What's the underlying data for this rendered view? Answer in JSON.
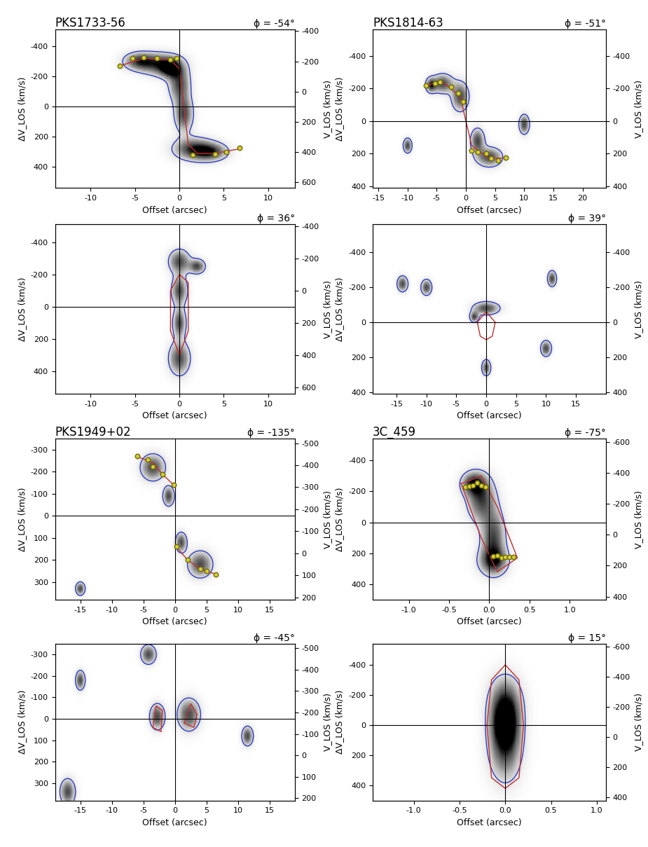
{
  "chart_data": [
    {
      "type": "position-velocity",
      "title": "PKS1733-56",
      "annotation": "ϕ = -54°",
      "x_label": "Offset (arcsec)",
      "y_label": "ΔV_LOS (km/s)",
      "y2_label": "V_LOS (km/s)",
      "xlim": [
        -14,
        13
      ],
      "xticks": [
        -10,
        -5,
        0,
        5,
        10
      ],
      "ylim": [
        540,
        -510
      ],
      "yticks": [
        -400,
        -200,
        0,
        200,
        400
      ],
      "y2lim": [
        640,
        -410
      ],
      "y2ticks": [
        -400,
        -200,
        0,
        200,
        400,
        600
      ],
      "emission": [
        [
          -2,
          -280,
          1.5,
          50
        ],
        [
          -4.5,
          -300,
          1.2,
          40
        ],
        [
          -1,
          -250,
          0.8,
          40
        ],
        [
          0,
          -150,
          0.8,
          80
        ],
        [
          0.5,
          50,
          0.7,
          80
        ],
        [
          1.5,
          280,
          1.5,
          50
        ],
        [
          3.5,
          300,
          1.3,
          40
        ]
      ],
      "model": [
        [
          [
            -6.7,
            -270
          ],
          [
            -4,
            -320
          ],
          [
            -1,
            -310
          ],
          [
            0,
            -250
          ],
          [
            0.5,
            0
          ],
          [
            1,
            250
          ],
          [
            2,
            310
          ],
          [
            4,
            310
          ],
          [
            6.8,
            280
          ]
        ]
      ],
      "points": [
        [
          -6.7,
          -270
        ],
        [
          -5.3,
          -320
        ],
        [
          -4,
          -325
        ],
        [
          -2.5,
          -320
        ],
        [
          -1,
          -310
        ],
        [
          -0.3,
          -320
        ],
        [
          1.5,
          320
        ],
        [
          4,
          315
        ],
        [
          5.3,
          300
        ],
        [
          6.8,
          275
        ]
      ]
    },
    {
      "type": "position-velocity",
      "annotation": "ϕ = 36°",
      "x_label": "Offset (arcsec)",
      "y_label": "ΔV_LOS (km/s)",
      "y2_label": "V_LOS (km/s)",
      "xlim": [
        -14,
        13
      ],
      "xticks": [
        -10,
        -5,
        0,
        5,
        10
      ],
      "ylim": [
        540,
        -510
      ],
      "yticks": [
        -400,
        -200,
        0,
        200,
        400
      ],
      "y2lim": [
        640,
        -410
      ],
      "y2ticks": [
        -400,
        -200,
        0,
        200,
        400,
        600
      ],
      "emission": [
        [
          0,
          -280,
          0.8,
          50
        ],
        [
          0,
          -100,
          0.6,
          60
        ],
        [
          0,
          100,
          0.5,
          60
        ],
        [
          0,
          320,
          0.8,
          70
        ],
        [
          2,
          -250,
          0.6,
          30
        ]
      ],
      "model": [
        [
          [
            -1,
            150
          ],
          [
            -1,
            -100
          ],
          [
            0,
            -200
          ],
          [
            1,
            -150
          ],
          [
            1,
            150
          ],
          [
            0,
            300
          ],
          [
            -1,
            150
          ]
        ]
      ],
      "points": []
    },
    {
      "type": "position-velocity",
      "title": "PKS1814-63",
      "annotation": "ϕ = -51°",
      "x_label": "Offset (arcsec)",
      "y_label": "ΔV_LOS (km/s)",
      "y2_label": "V_LOS (km/s)",
      "xlim": [
        -16,
        24
      ],
      "xticks": [
        -15,
        -10,
        -5,
        0,
        5,
        10,
        15,
        20
      ],
      "ylim": [
        410,
        -560
      ],
      "yticks": [
        -400,
        -200,
        0,
        200,
        400
      ],
      "y2lim": [
        410,
        -560
      ],
      "y2ticks": [
        -400,
        -200,
        0,
        200,
        400
      ],
      "emission": [
        [
          -4,
          -230,
          1.2,
          40
        ],
        [
          -1,
          -150,
          1,
          60
        ],
        [
          2,
          120,
          0.8,
          50
        ],
        [
          4,
          220,
          1.5,
          40
        ],
        [
          -6,
          -220,
          0.6,
          30
        ],
        [
          10,
          20,
          0.6,
          40
        ],
        [
          -10,
          150,
          0.5,
          30
        ]
      ],
      "model": [
        [
          [
            -6.8,
            -220
          ],
          [
            -4,
            -240
          ],
          [
            -1,
            -150
          ],
          [
            0,
            0
          ],
          [
            1,
            150
          ],
          [
            4,
            230
          ],
          [
            6.8,
            225
          ]
        ]
      ],
      "points": [
        [
          -6.8,
          -220
        ],
        [
          -5.3,
          -230
        ],
        [
          -4.5,
          -240
        ],
        [
          -2.5,
          -210
        ],
        [
          -1.3,
          -170
        ],
        [
          -0.5,
          -120
        ],
        [
          1,
          180
        ],
        [
          2,
          190
        ],
        [
          3.5,
          200
        ],
        [
          4.3,
          230
        ],
        [
          5.5,
          240
        ],
        [
          6.8,
          225
        ]
      ]
    },
    {
      "type": "position-velocity",
      "annotation": "ϕ = 39°",
      "x_label": "Offset (arcsec)",
      "y_label": "ΔV_LOS (km/s)",
      "y2_label": "V_LOS (km/s)",
      "xlim": [
        -19,
        20
      ],
      "xticks": [
        -15,
        -10,
        -5,
        0,
        5,
        10,
        15
      ],
      "ylim": [
        410,
        -560
      ],
      "yticks": [
        -400,
        -200,
        0,
        200,
        400
      ],
      "y2lim": [
        410,
        -560
      ],
      "y2ticks": [
        -400,
        -200,
        0,
        200,
        400
      ],
      "emission": [
        [
          0,
          -80,
          1.5,
          25
        ],
        [
          -2,
          -30,
          0.5,
          20
        ],
        [
          -10,
          -200,
          0.6,
          30
        ],
        [
          -14,
          -220,
          0.6,
          30
        ],
        [
          10,
          150,
          0.6,
          30
        ],
        [
          11,
          -250,
          0.5,
          30
        ],
        [
          0,
          260,
          0.5,
          30
        ]
      ],
      "model": [
        [
          [
            -1.5,
            0
          ],
          [
            0,
            -60
          ],
          [
            1.5,
            0
          ],
          [
            1,
            80
          ],
          [
            0,
            100
          ],
          [
            -1,
            80
          ],
          [
            -1.5,
            0
          ]
        ]
      ],
      "points": []
    },
    {
      "type": "position-velocity",
      "title": "PKS1949+02",
      "annotation": "ϕ = -135°",
      "x_label": "Offset (arcsec)",
      "y_label": "ΔV_LOS (km/s)",
      "y2_label": "V_LOS (km/s)",
      "xlim": [
        -19,
        19
      ],
      "xticks": [
        -15,
        -10,
        -5,
        0,
        5,
        10,
        15
      ],
      "ylim": [
        380,
        -350
      ],
      "yticks": [
        -300,
        -200,
        -100,
        0,
        100,
        200,
        300
      ],
      "y2lim": [
        210,
        -520
      ],
      "y2ticks": [
        -500,
        -400,
        -300,
        -200,
        -100,
        0,
        100,
        200
      ],
      "emission": [
        [
          -3.5,
          -220,
          1.3,
          40
        ],
        [
          -1,
          -90,
          0.6,
          30
        ],
        [
          4,
          220,
          1.3,
          40
        ],
        [
          1,
          120,
          0.6,
          30
        ],
        [
          -15,
          330,
          0.5,
          20
        ]
      ],
      "model": [
        [
          [
            -6,
            -270
          ],
          [
            -3.5,
            -240
          ],
          [
            -2,
            -190
          ],
          [
            -0.2,
            -140
          ]
        ],
        [
          [
            0.2,
            140
          ],
          [
            2,
            200
          ],
          [
            4,
            240
          ],
          [
            6.5,
            265
          ]
        ]
      ],
      "points": [
        [
          -6,
          -270
        ],
        [
          -4.3,
          -255
        ],
        [
          -3.5,
          -225
        ],
        [
          -2,
          -190
        ],
        [
          -0.2,
          -140
        ],
        [
          0.2,
          140
        ],
        [
          2,
          200
        ],
        [
          4,
          240
        ],
        [
          5,
          250
        ],
        [
          6.5,
          265
        ]
      ]
    },
    {
      "type": "position-velocity",
      "annotation": "ϕ = -45°",
      "x_label": "Offset (arcsec)",
      "y_label": "ΔV_LOS (km/s)",
      "y2_label": "V_LOS (km/s)",
      "xlim": [
        -19,
        19
      ],
      "xticks": [
        -15,
        -10,
        -5,
        0,
        5,
        10,
        15
      ],
      "ylim": [
        380,
        -350
      ],
      "yticks": [
        -300,
        -200,
        -100,
        0,
        100,
        200,
        300
      ],
      "y2lim": [
        210,
        -520
      ],
      "y2ticks": [
        -500,
        -400,
        -300,
        -200,
        -100,
        0,
        100,
        200
      ],
      "emission": [
        [
          -2.8,
          -10,
          0.8,
          40
        ],
        [
          2.2,
          -20,
          1.2,
          50
        ],
        [
          -4.2,
          -300,
          0.8,
          30
        ],
        [
          11.5,
          80,
          0.6,
          30
        ],
        [
          -17,
          340,
          0.8,
          40
        ],
        [
          -15,
          -180,
          0.5,
          30
        ]
      ],
      "model": [
        [
          [
            -3.5,
            40
          ],
          [
            -3,
            -60
          ],
          [
            -2,
            -40
          ],
          [
            -2.2,
            60
          ],
          [
            -3.5,
            40
          ]
        ],
        [
          [
            1.5,
            20
          ],
          [
            2.5,
            -70
          ],
          [
            3.5,
            -20
          ],
          [
            3,
            40
          ],
          [
            1.5,
            20
          ]
        ]
      ],
      "points": []
    },
    {
      "type": "position-velocity",
      "title": "3C_459",
      "annotation": "ϕ = -75°",
      "x_label": "Offset (arcsec)",
      "y_label": "ΔV_LOS (km/s)",
      "y2_label": "V_LOS (km/s)",
      "xlim": [
        -1.45,
        1.45
      ],
      "xticks": [
        -1.0,
        -0.5,
        0.0,
        0.5,
        1.0
      ],
      "ylim": [
        500,
        -540
      ],
      "yticks": [
        -400,
        -200,
        0,
        200,
        400
      ],
      "y2lim": [
        420,
        -620
      ],
      "y2ticks": [
        -600,
        -400,
        -200,
        0,
        200,
        400
      ],
      "emission": [
        [
          -0.1,
          -150,
          0.12,
          100
        ],
        [
          0.05,
          100,
          0.1,
          120
        ],
        [
          0.05,
          250,
          0.12,
          60
        ],
        [
          -0.2,
          -250,
          0.1,
          50
        ]
      ],
      "model": [
        [
          [
            -0.35,
            -250
          ],
          [
            -0.1,
            -300
          ],
          [
            0.1,
            -100
          ],
          [
            0.35,
            230
          ],
          [
            0.1,
            320
          ],
          [
            -0.1,
            100
          ],
          [
            -0.35,
            -250
          ]
        ]
      ],
      "points": [
        [
          -0.3,
          -230
        ],
        [
          -0.25,
          -235
        ],
        [
          -0.2,
          -240
        ],
        [
          -0.15,
          -255
        ],
        [
          -0.1,
          -240
        ],
        [
          -0.05,
          -230
        ],
        [
          0.05,
          220
        ],
        [
          0.1,
          215
        ],
        [
          0.15,
          230
        ],
        [
          0.2,
          225
        ],
        [
          0.25,
          225
        ],
        [
          0.3,
          225
        ]
      ]
    },
    {
      "type": "position-velocity",
      "annotation": "ϕ = 15°",
      "x_label": "Offset (arcsec)",
      "y_label": "ΔV_LOS (km/s)",
      "y2_label": "V_LOS (km/s)",
      "xlim": [
        -1.45,
        1.1
      ],
      "xticks": [
        -1.0,
        -0.5,
        0.0,
        0.5,
        1.0
      ],
      "ylim": [
        500,
        -540
      ],
      "yticks": [
        -400,
        -200,
        0,
        200,
        400
      ],
      "y2lim": [
        420,
        -620
      ],
      "y2ticks": [
        -600,
        -400,
        -200,
        0,
        200,
        400
      ],
      "emission": [
        [
          0,
          -150,
          0.12,
          120
        ],
        [
          0,
          150,
          0.12,
          150
        ],
        [
          0,
          0,
          0.1,
          100
        ]
      ],
      "model": [
        [
          [
            -0.2,
            0
          ],
          [
            -0.15,
            -300
          ],
          [
            0,
            -400
          ],
          [
            0.15,
            -300
          ],
          [
            0.2,
            0
          ],
          [
            0.15,
            350
          ],
          [
            0,
            420
          ],
          [
            -0.15,
            350
          ],
          [
            -0.2,
            0
          ]
        ]
      ],
      "points": []
    }
  ]
}
